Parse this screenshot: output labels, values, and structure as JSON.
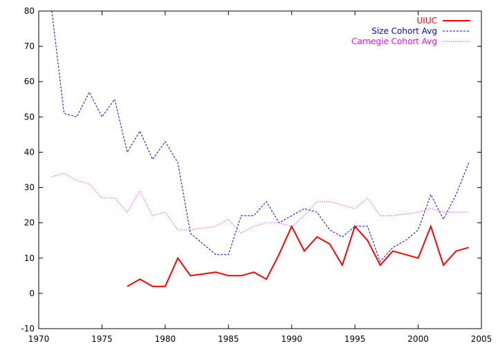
{
  "chart_data": {
    "type": "line",
    "title": "",
    "xlabel": "",
    "ylabel": "",
    "xlim": [
      1970,
      2005
    ],
    "ylim": [
      -10,
      80
    ],
    "xticks": [
      1970,
      1975,
      1980,
      1985,
      1990,
      1995,
      2000,
      2005
    ],
    "yticks": [
      -10,
      0,
      10,
      20,
      30,
      40,
      50,
      60,
      70,
      80
    ],
    "grid": false,
    "legend_position": "top-right",
    "series": [
      {
        "name": "UIUC",
        "color": "#ff0000",
        "style": "solid",
        "x": [
          1977,
          1978,
          1979,
          1980,
          1981,
          1982,
          1983,
          1984,
          1985,
          1986,
          1987,
          1988,
          1989,
          1990,
          1991,
          1992,
          1993,
          1994,
          1995,
          1996,
          1997,
          1998,
          1999,
          2000,
          2001,
          2002,
          2003,
          2004
        ],
        "y": [
          2,
          4,
          2,
          2,
          10,
          5,
          5.5,
          6,
          5,
          5,
          6,
          4,
          11,
          19,
          12,
          16,
          14,
          8,
          19,
          15,
          8,
          12,
          11,
          10,
          19,
          8,
          12,
          13
        ]
      },
      {
        "name": "Size Cohort Avg",
        "color": "#0000ff",
        "style": "dashed",
        "x": [
          1971,
          1972,
          1973,
          1974,
          1975,
          1976,
          1977,
          1978,
          1979,
          1980,
          1981,
          1982,
          1983,
          1984,
          1985,
          1986,
          1987,
          1988,
          1989,
          1990,
          1991,
          1992,
          1993,
          1994,
          1995,
          1996,
          1997,
          1998,
          1999,
          2000,
          2001,
          2002,
          2003,
          2004
        ],
        "y": [
          81,
          51,
          50,
          57,
          50,
          55,
          40,
          46,
          38,
          43,
          37,
          17,
          14,
          11,
          11,
          22,
          22,
          26,
          20,
          22,
          24,
          23,
          18,
          16,
          19,
          19,
          9,
          13,
          15,
          18,
          28,
          21,
          28,
          37
        ]
      },
      {
        "name": "Carnegie Cohort Avg",
        "color": "#ff00ff",
        "style": "dotted",
        "x": [
          1971,
          1972,
          1973,
          1974,
          1975,
          1976,
          1977,
          1978,
          1979,
          1980,
          1981,
          1982,
          1983,
          1984,
          1985,
          1986,
          1987,
          1988,
          1989,
          1990,
          1991,
          1992,
          1993,
          1994,
          1995,
          1996,
          1997,
          1998,
          1999,
          2000,
          2001,
          2002,
          2003,
          2004
        ],
        "y": [
          33,
          34,
          32,
          31,
          27,
          27,
          23,
          29,
          22,
          23,
          18,
          18,
          18.5,
          19,
          21,
          17,
          19,
          20,
          20,
          19,
          22,
          26,
          26,
          25,
          24,
          27,
          22,
          22,
          22.5,
          23,
          24,
          23,
          23,
          23
        ]
      }
    ]
  }
}
